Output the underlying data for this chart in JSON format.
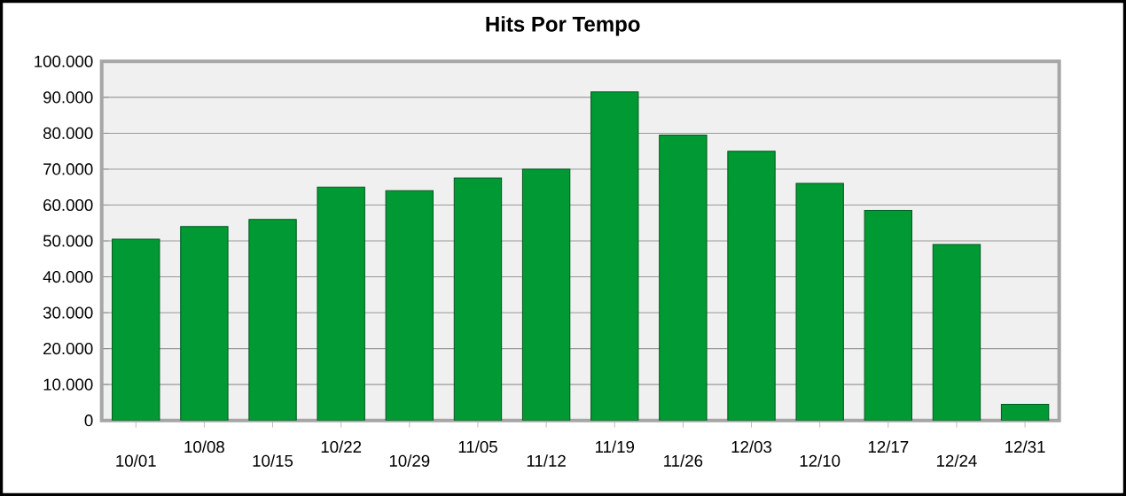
{
  "chart_data": {
    "type": "bar",
    "title": "Hits Por Tempo",
    "categories": [
      "10/01",
      "10/08",
      "10/15",
      "10/22",
      "10/29",
      "11/05",
      "11/12",
      "11/19",
      "11/26",
      "12/03",
      "12/10",
      "12/17",
      "12/24",
      "12/31"
    ],
    "values": [
      50500,
      54000,
      56000,
      65000,
      64000,
      67500,
      70000,
      91500,
      79500,
      75000,
      66000,
      58500,
      49000,
      4500
    ],
    "color": "#009933",
    "ylim": [
      0,
      100000
    ],
    "yticks": [
      {
        "value": 0,
        "label": "0"
      },
      {
        "value": 10000,
        "label": "10.000"
      },
      {
        "value": 20000,
        "label": "20.000"
      },
      {
        "value": 30000,
        "label": "30.000"
      },
      {
        "value": 40000,
        "label": "40.000"
      },
      {
        "value": 50000,
        "label": "50.000"
      },
      {
        "value": 60000,
        "label": "60.000"
      },
      {
        "value": 70000,
        "label": "70.000"
      },
      {
        "value": 80000,
        "label": "80.000"
      },
      {
        "value": 90000,
        "label": "90.000"
      },
      {
        "value": 100000,
        "label": "100.000"
      }
    ],
    "grid": "y"
  }
}
